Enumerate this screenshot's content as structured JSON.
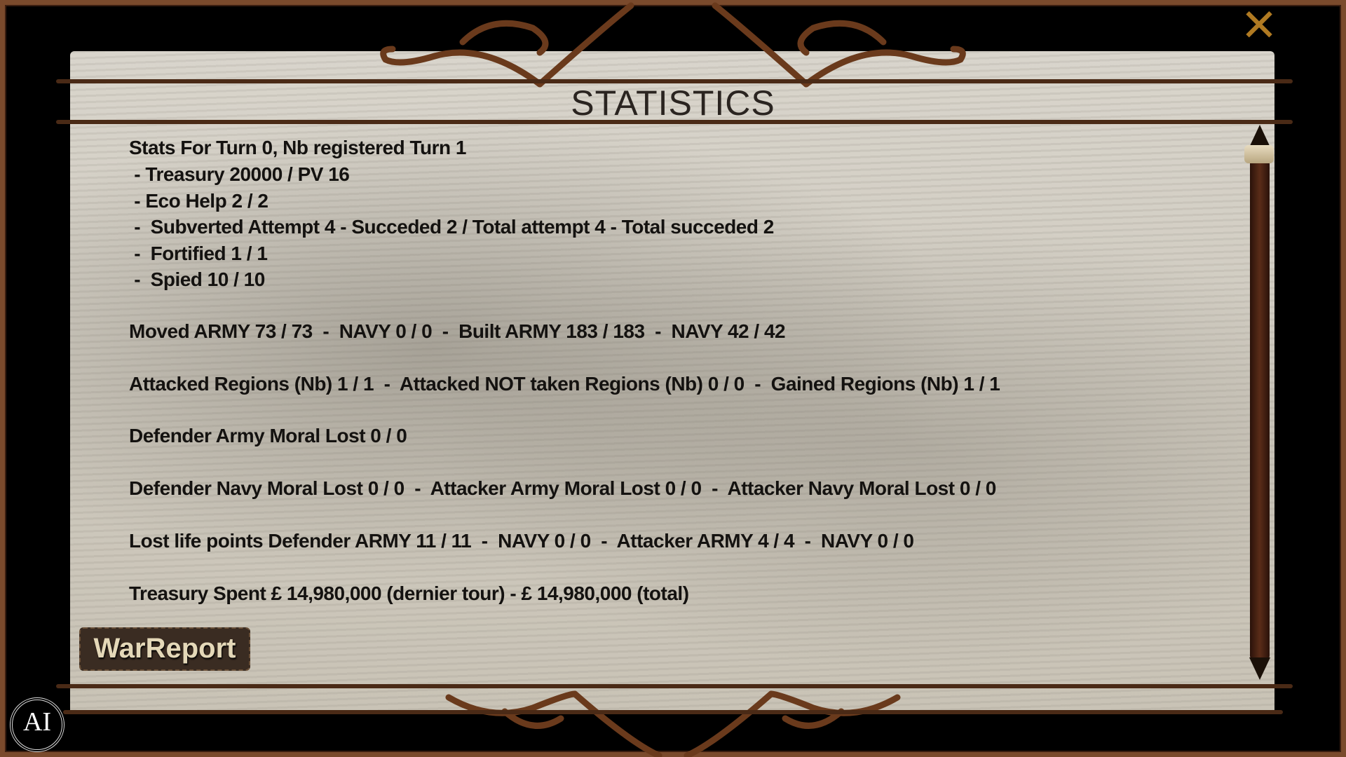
{
  "title": "STATISTICS",
  "stats_lines": [
    "Stats For Turn 0, Nb registered Turn 1",
    " - Treasury 20000 / PV 16",
    " - Eco Help 2 / 2",
    " -  Subverted Attempt 4 - Succeded 2 / Total attempt 4 - Total succeded 2",
    " -  Fortified 1 / 1",
    " -  Spied 10 / 10",
    "Moved ARMY 73 / 73  -  NAVY 0 / 0  -  Built ARMY 183 / 183  -  NAVY 42 / 42",
    "Attacked Regions (Nb) 1 / 1  -  Attacked NOT taken Regions (Nb) 0 / 0  -  Gained Regions (Nb) 1 / 1",
    "Defender Army Moral Lost 0 / 0",
    "Defender Navy Moral Lost 0 / 0  -  Attacker Army Moral Lost 0 / 0  -  Attacker Navy Moral Lost 0 / 0",
    "Lost life points Defender ARMY 11 / 11  -  NAVY 0 / 0  -  Attacker ARMY 4 / 4  -  NAVY 0 / 0",
    "Treasury Spent £ 14,980,000 (dernier tour) - £ 14,980,000 (total)"
  ],
  "buttons": {
    "war_report": "WarReport",
    "close": "✕"
  },
  "logo": "AI",
  "colors": {
    "frame": "#7a4a2c",
    "close": "#b07a22",
    "button_bg": "#3a2c22"
  }
}
